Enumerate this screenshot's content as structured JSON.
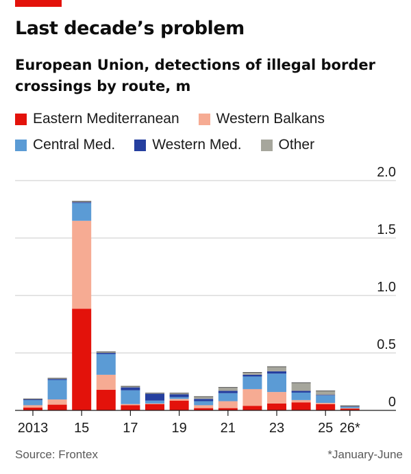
{
  "header": {
    "title": "Last decade’s problem",
    "subtitle": "European Union, detections of illegal border crossings by route, m"
  },
  "legend": {
    "items": [
      {
        "label": "Eastern Mediterranean",
        "color": "#e3120b"
      },
      {
        "label": "Western Balkans",
        "color": "#f6ab93"
      },
      {
        "label": "Central Med.",
        "color": "#5b9bd5"
      },
      {
        "label": "Western Med.",
        "color": "#253f9f"
      },
      {
        "label": "Other",
        "color": "#a6a69c"
      }
    ]
  },
  "footer": {
    "source": "Source: Frontex",
    "note": "*January-June"
  },
  "chart_data": {
    "type": "bar",
    "stacked": true,
    "title": "Last decade’s problem",
    "subtitle": "European Union, detections of illegal border crossings by route, m",
    "xlabel": "",
    "ylabel": "",
    "ylim": [
      0,
      2.0
    ],
    "yticks": [
      0,
      0.5,
      1.0,
      1.5,
      2.0
    ],
    "ytick_labels": [
      "0",
      "0.5",
      "1.0",
      "1.5",
      "2.0"
    ],
    "y_axis_position": "right",
    "grid": true,
    "legend_position": "top",
    "categories": [
      "2013",
      "2014",
      "2015",
      "2016",
      "2017",
      "2018",
      "2019",
      "2020",
      "2021",
      "2022",
      "2023",
      "2024",
      "2025",
      "2026*"
    ],
    "xtick_labels": [
      "2013",
      "15",
      "17",
      "19",
      "21",
      "23",
      "25",
      "26*"
    ],
    "xtick_categories": [
      "2013",
      "2015",
      "2017",
      "2019",
      "2021",
      "2023",
      "2025",
      "2026*"
    ],
    "series": [
      {
        "name": "Eastern Mediterranean",
        "color": "#e3120b",
        "values": [
          0.025,
          0.05,
          0.885,
          0.18,
          0.045,
          0.055,
          0.085,
          0.02,
          0.02,
          0.04,
          0.06,
          0.07,
          0.055,
          0.015
        ]
      },
      {
        "name": "Western Balkans",
        "color": "#f6ab93",
        "values": [
          0.02,
          0.045,
          0.765,
          0.13,
          0.01,
          0.005,
          0.015,
          0.025,
          0.06,
          0.145,
          0.1,
          0.02,
          0.01,
          0.005
        ]
      },
      {
        "name": "Central Med.",
        "color": "#5b9bd5",
        "values": [
          0.045,
          0.17,
          0.155,
          0.18,
          0.12,
          0.025,
          0.015,
          0.035,
          0.07,
          0.11,
          0.16,
          0.065,
          0.065,
          0.01
        ]
      },
      {
        "name": "Western Med.",
        "color": "#253f9f",
        "values": [
          0.007,
          0.008,
          0.007,
          0.01,
          0.025,
          0.06,
          0.025,
          0.02,
          0.02,
          0.015,
          0.02,
          0.015,
          0.005,
          0.003
        ]
      },
      {
        "name": "Other",
        "color": "#a6a69c",
        "values": [
          0.003,
          0.007,
          0.008,
          0.01,
          0.01,
          0.005,
          0.01,
          0.02,
          0.03,
          0.02,
          0.04,
          0.07,
          0.035,
          0.007
        ]
      }
    ]
  }
}
